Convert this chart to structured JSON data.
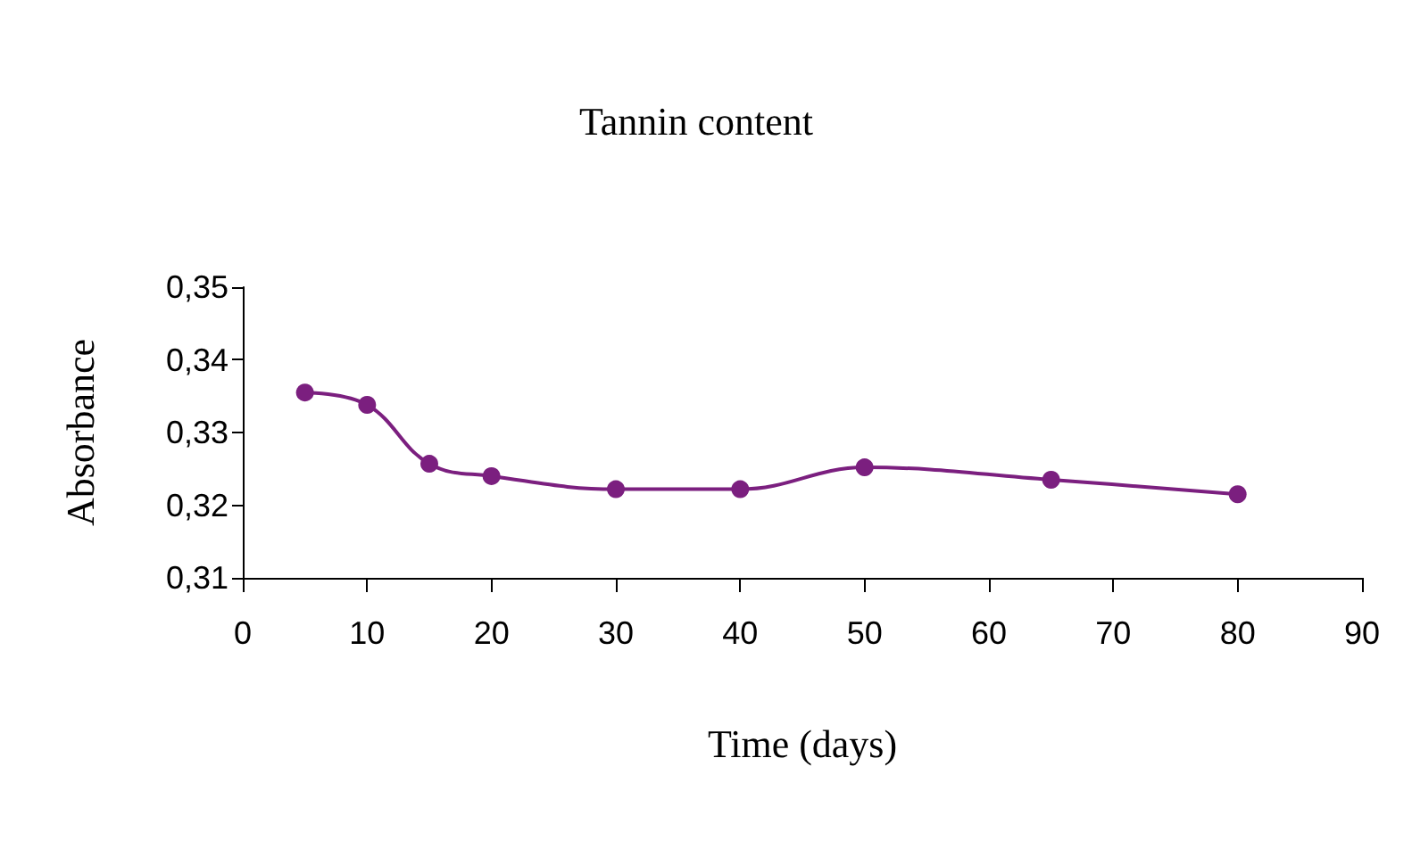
{
  "chart_data": {
    "type": "line",
    "title": "Tannin content",
    "xlabel": "Time (days)",
    "ylabel": "Absorbance",
    "x": [
      5,
      10,
      15,
      20,
      30,
      40,
      50,
      65,
      80
    ],
    "series": [
      {
        "color": "#7b1f7f",
        "values": [
          0.3355,
          0.3338,
          0.3257,
          0.324,
          0.3222,
          0.3222,
          0.3252,
          0.3235,
          0.3215
        ]
      }
    ],
    "xlim": [
      0,
      90
    ],
    "xticks": [
      0,
      10,
      20,
      30,
      40,
      50,
      60,
      70,
      80,
      90
    ],
    "ylim": [
      0.31,
      0.35
    ],
    "yticks": [
      {
        "value": 0.31,
        "label": "0,31"
      },
      {
        "value": 0.32,
        "label": "0,32"
      },
      {
        "value": 0.33,
        "label": "0,33"
      },
      {
        "value": 0.34,
        "label": "0,34"
      },
      {
        "value": 0.35,
        "label": "0,35"
      }
    ],
    "grid": false,
    "marker": "circle",
    "line_style": "solid"
  }
}
